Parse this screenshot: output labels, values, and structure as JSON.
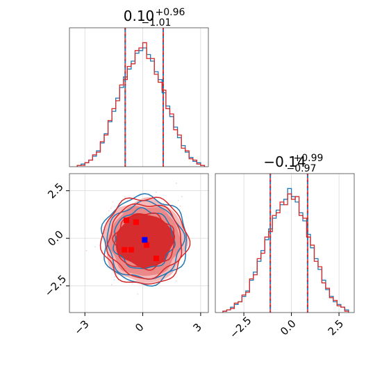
{
  "chart_data": [
    {
      "type": "histogram",
      "panel": "marginal-x",
      "title_value": "0.10",
      "title_plus": "+0.96",
      "title_minus": "−1.01",
      "xlim": [
        -3.8,
        3.4
      ],
      "quantiles": [
        -0.91,
        0.1,
        1.06
      ],
      "series": [
        {
          "name": "",
          "color": "#1f77b4",
          "bins": [
            [
              -3.3,
              1
            ],
            [
              -3.1,
              2
            ],
            [
              -2.9,
              3
            ],
            [
              -2.7,
              5
            ],
            [
              -2.5,
              8
            ],
            [
              -2.3,
              12
            ],
            [
              -2.1,
              18
            ],
            [
              -1.9,
              25
            ],
            [
              -1.7,
              34
            ],
            [
              -1.5,
              42
            ],
            [
              -1.3,
              52
            ],
            [
              -1.1,
              60
            ],
            [
              -0.9,
              68
            ],
            [
              -0.7,
              74
            ],
            [
              -0.5,
              80
            ],
            [
              -0.3,
              86
            ],
            [
              -0.1,
              88
            ],
            [
              0.1,
              90
            ],
            [
              0.3,
              85
            ],
            [
              0.5,
              80
            ],
            [
              0.7,
              72
            ],
            [
              0.9,
              66
            ],
            [
              1.1,
              56
            ],
            [
              1.3,
              46
            ],
            [
              1.5,
              38
            ],
            [
              1.7,
              30
            ],
            [
              1.9,
              22
            ],
            [
              2.1,
              16
            ],
            [
              2.3,
              11
            ],
            [
              2.5,
              7
            ],
            [
              2.7,
              4
            ],
            [
              2.9,
              3
            ],
            [
              3.1,
              1
            ]
          ]
        },
        {
          "name": "",
          "color": "#d62728",
          "bins": [
            [
              -3.3,
              1
            ],
            [
              -3.1,
              1
            ],
            [
              -2.9,
              3
            ],
            [
              -2.7,
              5
            ],
            [
              -2.5,
              9
            ],
            [
              -2.3,
              11
            ],
            [
              -2.1,
              19
            ],
            [
              -1.9,
              24
            ],
            [
              -1.7,
              35
            ],
            [
              -1.5,
              44
            ],
            [
              -1.3,
              50
            ],
            [
              -1.1,
              62
            ],
            [
              -0.9,
              66
            ],
            [
              -0.7,
              76
            ],
            [
              -0.5,
              78
            ],
            [
              -0.3,
              88
            ],
            [
              -0.1,
              90
            ],
            [
              0.1,
              94
            ],
            [
              0.3,
              82
            ],
            [
              0.5,
              82
            ],
            [
              0.7,
              70
            ],
            [
              0.9,
              64
            ],
            [
              1.1,
              58
            ],
            [
              1.3,
              44
            ],
            [
              1.5,
              40
            ],
            [
              1.7,
              28
            ],
            [
              1.9,
              24
            ],
            [
              2.1,
              14
            ],
            [
              2.3,
              12
            ],
            [
              2.5,
              6
            ],
            [
              2.7,
              5
            ],
            [
              2.9,
              2
            ],
            [
              3.1,
              1
            ]
          ]
        }
      ]
    },
    {
      "type": "contour",
      "panel": "joint",
      "xlim": [
        -3.8,
        3.4
      ],
      "ylim": [
        -3.9,
        3.4
      ],
      "xticks": [
        "−3",
        "0",
        "3"
      ],
      "xtick_values": [
        -3,
        0,
        3
      ],
      "yticks": [
        "−2.5",
        "0.0",
        "2.5"
      ],
      "ytick_values": [
        -2.5,
        0,
        2.5
      ],
      "levels": [
        {
          "name": "",
          "color": "#1f77b4",
          "cx": 0.1,
          "cy": -0.14,
          "rx": 1.95,
          "ry": 2.0
        },
        {
          "name": "",
          "color": "#1f77b4",
          "cx": 0.05,
          "cy": -0.05,
          "rx": 1.55,
          "ry": 1.55
        },
        {
          "name": "",
          "color": "#1f77b4",
          "cx": 0.1,
          "cy": -0.1,
          "rx": 2.2,
          "ry": 2.3
        },
        {
          "name": "",
          "color": "#d62728",
          "cx": 0.1,
          "cy": -0.14,
          "rx": 2.2,
          "ry": 2.3
        },
        {
          "name": "",
          "color": "#d62728",
          "cx": 0.12,
          "cy": -0.12,
          "rx": 1.9,
          "ry": 1.95
        },
        {
          "name": "",
          "color": "#d62728",
          "cx": 0.1,
          "cy": -0.14,
          "rx": 1.55,
          "ry": 1.45
        }
      ],
      "points_red": [
        [
          -0.85,
          0.95
        ],
        [
          -0.35,
          0.85
        ],
        [
          -0.95,
          -0.6
        ],
        [
          -0.6,
          -0.6
        ],
        [
          0.2,
          -0.35
        ],
        [
          0.7,
          -1.05
        ]
      ],
      "point_blue": [
        0.1,
        -0.08
      ]
    },
    {
      "type": "histogram",
      "panel": "marginal-y",
      "title_value": "−0.14",
      "title_plus": "+0.99",
      "title_minus": "−0.97",
      "xlim": [
        -4.0,
        3.3
      ],
      "xticks": [
        "−2.5",
        "0.0",
        "2.5"
      ],
      "xtick_values": [
        -2.5,
        0,
        2.5
      ],
      "quantiles": [
        -1.11,
        -0.14,
        0.85
      ],
      "series": [
        {
          "name": "",
          "color": "#1f77b4",
          "bins": [
            [
              -3.5,
              1
            ],
            [
              -3.3,
              2
            ],
            [
              -3.1,
              4
            ],
            [
              -2.9,
              6
            ],
            [
              -2.7,
              8
            ],
            [
              -2.5,
              12
            ],
            [
              -2.3,
              16
            ],
            [
              -2.1,
              24
            ],
            [
              -1.9,
              30
            ],
            [
              -1.7,
              38
            ],
            [
              -1.5,
              46
            ],
            [
              -1.3,
              54
            ],
            [
              -1.1,
              62
            ],
            [
              -0.9,
              70
            ],
            [
              -0.7,
              76
            ],
            [
              -0.5,
              80
            ],
            [
              -0.3,
              84
            ],
            [
              -0.1,
              92
            ],
            [
              0.1,
              86
            ],
            [
              0.3,
              82
            ],
            [
              0.5,
              74
            ],
            [
              0.7,
              68
            ],
            [
              0.9,
              58
            ],
            [
              1.1,
              48
            ],
            [
              1.3,
              40
            ],
            [
              1.5,
              32
            ],
            [
              1.7,
              24
            ],
            [
              1.9,
              17
            ],
            [
              2.1,
              12
            ],
            [
              2.3,
              8
            ],
            [
              2.5,
              6
            ],
            [
              2.7,
              4
            ],
            [
              2.9,
              2
            ]
          ]
        },
        {
          "name": "",
          "color": "#d62728",
          "bins": [
            [
              -3.5,
              1
            ],
            [
              -3.3,
              2
            ],
            [
              -3.1,
              3
            ],
            [
              -2.9,
              7
            ],
            [
              -2.7,
              8
            ],
            [
              -2.5,
              13
            ],
            [
              -2.3,
              15
            ],
            [
              -2.1,
              25
            ],
            [
              -1.9,
              28
            ],
            [
              -1.7,
              40
            ],
            [
              -1.5,
              44
            ],
            [
              -1.3,
              56
            ],
            [
              -1.1,
              60
            ],
            [
              -0.9,
              72
            ],
            [
              -0.7,
              74
            ],
            [
              -0.5,
              82
            ],
            [
              -0.3,
              80
            ],
            [
              -0.1,
              88
            ],
            [
              0.1,
              84
            ],
            [
              0.3,
              86
            ],
            [
              0.5,
              72
            ],
            [
              0.7,
              70
            ],
            [
              0.9,
              56
            ],
            [
              1.1,
              50
            ],
            [
              1.3,
              38
            ],
            [
              1.5,
              34
            ],
            [
              1.7,
              22
            ],
            [
              1.9,
              18
            ],
            [
              2.1,
              11
            ],
            [
              2.3,
              9
            ],
            [
              2.5,
              5
            ],
            [
              2.7,
              4
            ],
            [
              2.9,
              1
            ]
          ]
        }
      ]
    }
  ]
}
